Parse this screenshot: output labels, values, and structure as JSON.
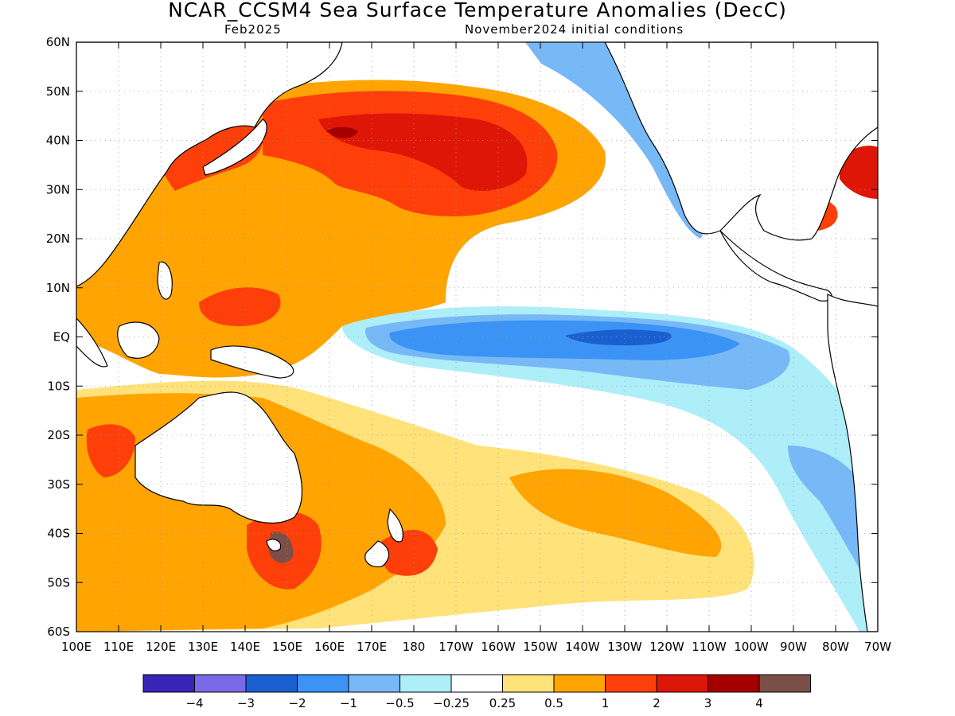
{
  "title": "NCAR_CCSM4 Sea Surface Temperature Anomalies (DecC)",
  "valid_month": "Feb2025",
  "initial_conditions": "November2024 initial conditions",
  "lat_labels": [
    "60N",
    "50N",
    "40N",
    "30N",
    "20N",
    "10N",
    "EQ",
    "10S",
    "20S",
    "30S",
    "40S",
    "50S",
    "60S"
  ],
  "lon_labels": [
    "100E",
    "110E",
    "120E",
    "130E",
    "140E",
    "150E",
    "160E",
    "170E",
    "180",
    "170W",
    "160W",
    "150W",
    "140W",
    "130W",
    "120W",
    "110W",
    "100W",
    "90W",
    "80W",
    "70W"
  ],
  "colorbar": {
    "colors": [
      "#3a24b8",
      "#7b69e9",
      "#1a5fd0",
      "#3a93f5",
      "#77b8f7",
      "#aeeef9",
      "#ffffff",
      "#ffe27a",
      "#ffa400",
      "#ff3f0a",
      "#de1607",
      "#a50000",
      "#7b4f47"
    ],
    "labels": [
      "−4",
      "−3",
      "−2",
      "−1",
      "−0.5",
      "−0.25",
      "0.25",
      "0.5",
      "1",
      "2",
      "3",
      "4"
    ]
  }
}
